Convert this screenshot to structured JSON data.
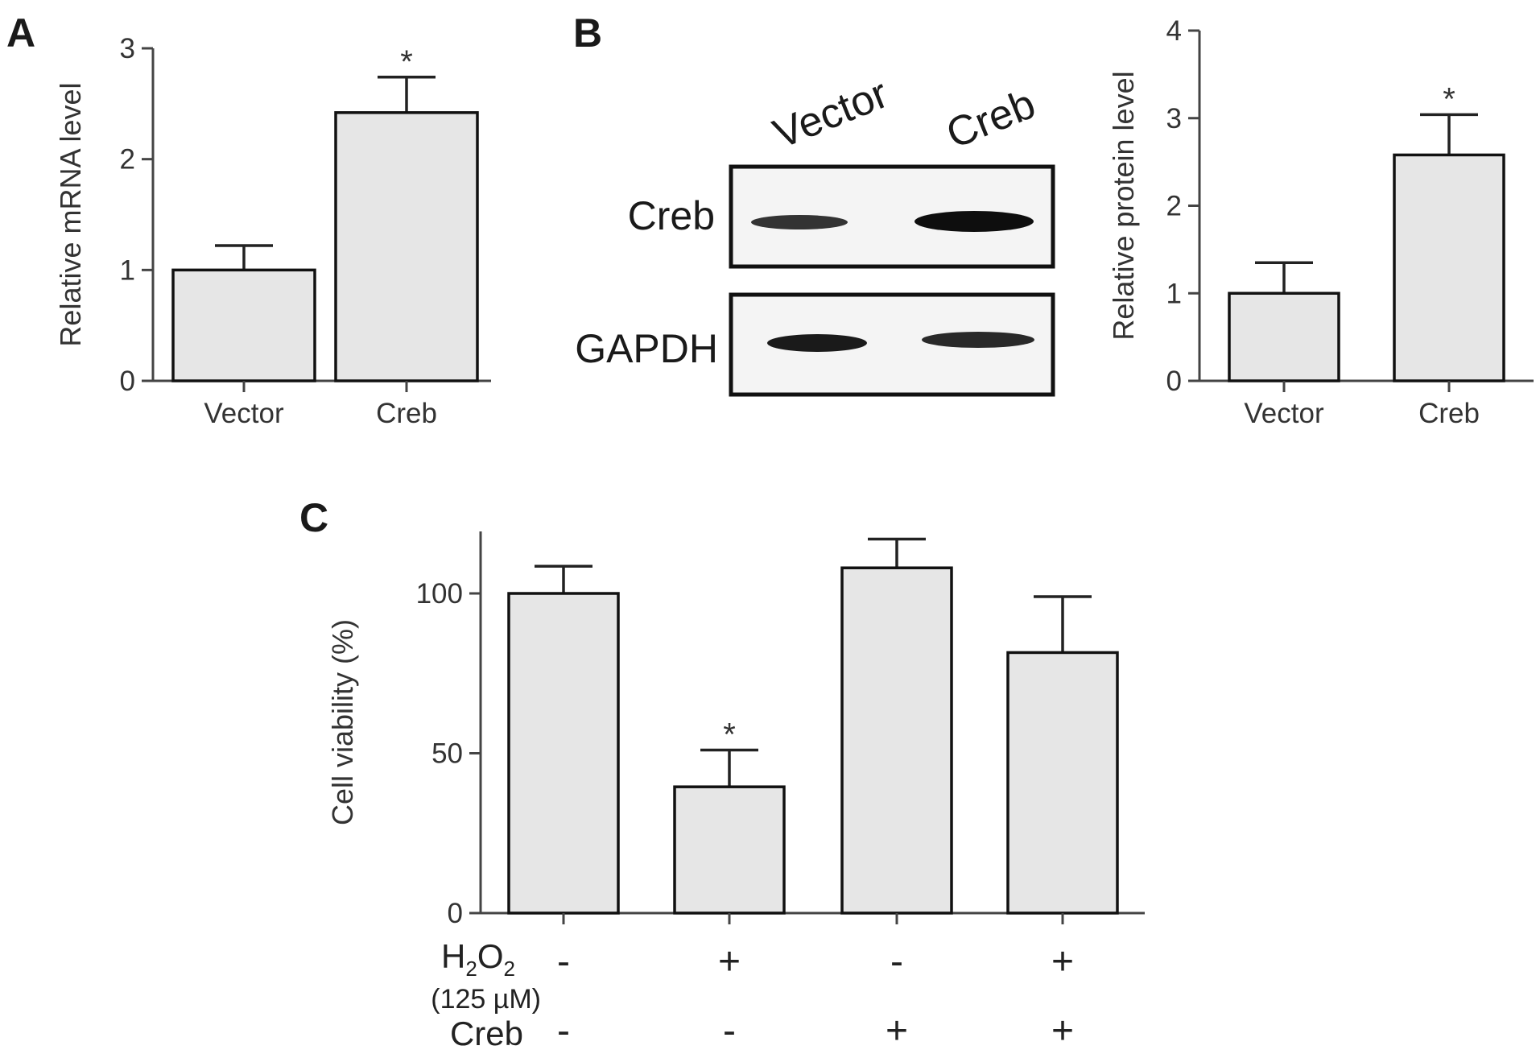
{
  "panels": {
    "A": {
      "letter": "A"
    },
    "B": {
      "letter": "B",
      "blot": {
        "columns": [
          "Vector",
          "Creb"
        ],
        "rows": [
          "Creb",
          "GAPDH"
        ]
      }
    },
    "C": {
      "letter": "C",
      "conditions": {
        "h2o2_label": {
          "main": "H",
          "sub1": "2",
          "mid": "O",
          "sub2": "2"
        },
        "h2o2_conc": "(125 µM)",
        "creb_label": "Creb",
        "h2o2_signs": [
          "-",
          "+",
          "-",
          "+"
        ],
        "creb_signs": [
          "-",
          "-",
          "+",
          "+"
        ]
      }
    }
  },
  "chart_data": [
    {
      "id": "A",
      "type": "bar",
      "ylabel": "Relative mRNA level",
      "categories": [
        "Vector",
        "Creb"
      ],
      "values": [
        1.0,
        2.42
      ],
      "errors": [
        0.22,
        0.32
      ],
      "annotations": [
        "",
        "*"
      ],
      "ylim": [
        0,
        3
      ],
      "yticks": [
        0,
        1,
        2,
        3
      ],
      "bar_color": "#e6e6e6",
      "grid": false
    },
    {
      "id": "B",
      "type": "bar",
      "ylabel": "Relative protein level",
      "categories": [
        "Vector",
        "Creb"
      ],
      "values": [
        1.0,
        2.58
      ],
      "errors": [
        0.35,
        0.46
      ],
      "annotations": [
        "",
        "*"
      ],
      "ylim": [
        0,
        4
      ],
      "yticks": [
        0,
        1,
        2,
        3,
        4
      ],
      "bar_color": "#e6e6e6",
      "grid": false
    },
    {
      "id": "C",
      "type": "bar",
      "ylabel": "Cell viability (%)",
      "categories": [
        "",
        "",
        "",
        ""
      ],
      "values": [
        100,
        39.5,
        108,
        81.5
      ],
      "errors": [
        8.5,
        11.5,
        9,
        17.5
      ],
      "annotations": [
        "",
        "*",
        "",
        ""
      ],
      "ylim": [
        0,
        120
      ],
      "yticks": [
        0,
        50,
        100
      ],
      "bar_color": "#e6e6e6",
      "grid": false
    }
  ]
}
